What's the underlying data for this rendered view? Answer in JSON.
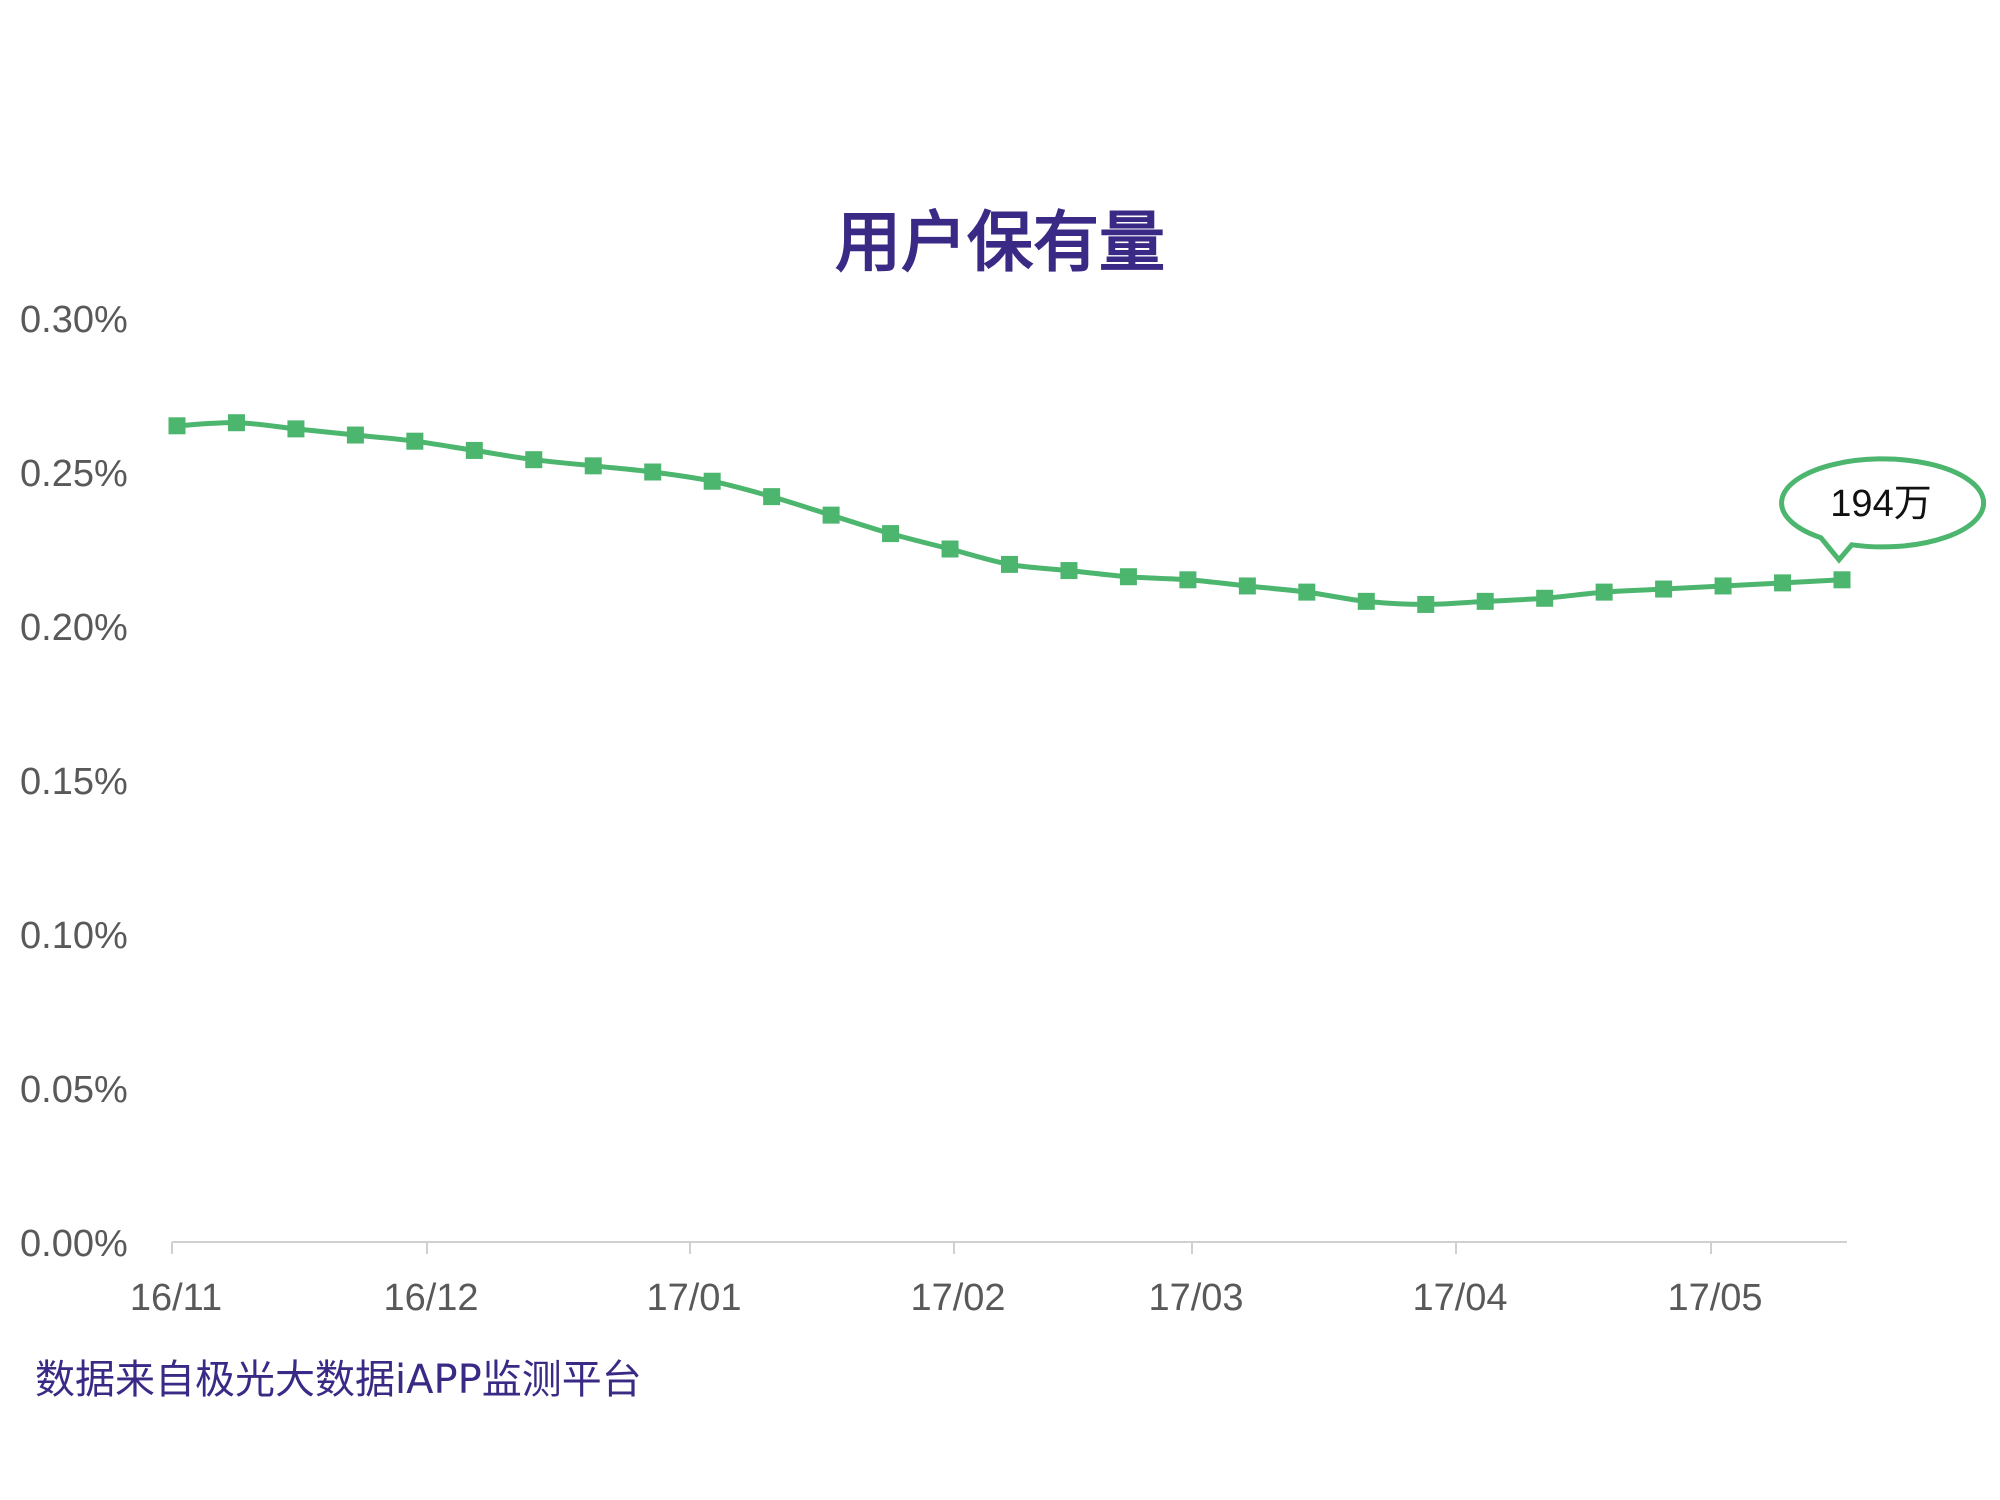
{
  "colors": {
    "title": "#3b2a85",
    "line": "#4cb56e",
    "axis": "#d0d0d0",
    "tick_text": "#595959",
    "source": "#3b2a85"
  },
  "source_note": "数据来自极光大数据iAPP监测平台",
  "chart_data": {
    "type": "line",
    "title": "用户保有量",
    "xlabel": "",
    "ylabel": "",
    "ylim": [
      0,
      0.3
    ],
    "yticks": [
      "0.00%",
      "0.05%",
      "0.10%",
      "0.15%",
      "0.20%",
      "0.25%",
      "0.30%"
    ],
    "xtick_labels": [
      "16/11",
      "16/12",
      "17/01",
      "17/02",
      "17/03",
      "17/04",
      "17/05"
    ],
    "grid": false,
    "marker": "square",
    "series": [
      {
        "values": [
          0.265,
          0.266,
          0.264,
          0.262,
          0.26,
          0.257,
          0.254,
          0.252,
          0.25,
          0.247,
          0.242,
          0.236,
          0.23,
          0.225,
          0.22,
          0.218,
          0.216,
          0.215,
          0.213,
          0.211,
          0.208,
          0.207,
          0.208,
          0.209,
          0.211,
          0.212,
          0.213,
          0.214,
          0.215
        ]
      }
    ],
    "annotation": {
      "point_index": 28,
      "text": "194万"
    }
  }
}
